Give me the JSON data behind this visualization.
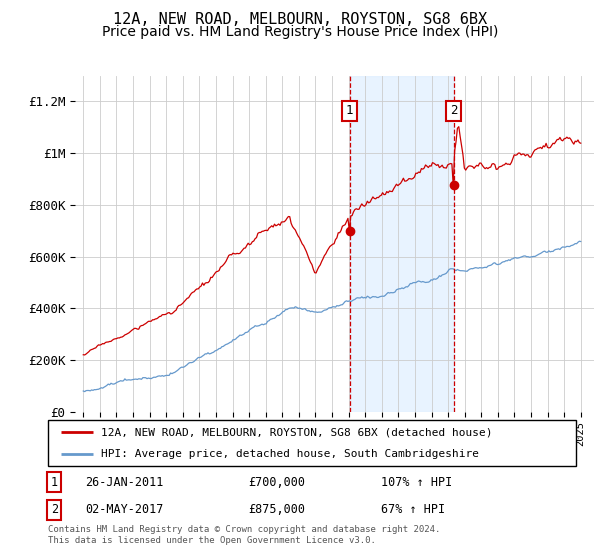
{
  "title": "12A, NEW ROAD, MELBOURN, ROYSTON, SG8 6BX",
  "subtitle": "Price paid vs. HM Land Registry's House Price Index (HPI)",
  "title_fontsize": 11,
  "subtitle_fontsize": 10,
  "ylim": [
    0,
    1300000
  ],
  "yticks": [
    0,
    200000,
    400000,
    600000,
    800000,
    1000000,
    1200000
  ],
  "ytick_labels": [
    "£0",
    "£200K",
    "£400K",
    "£600K",
    "£800K",
    "£1M",
    "£1.2M"
  ],
  "background_color": "#ffffff",
  "plot_bg_color": "#ffffff",
  "grid_color": "#cccccc",
  "sale1": {
    "date_num": 2011.07,
    "price": 700000,
    "label": "1",
    "date_str": "26-JAN-2011",
    "price_str": "£700,000",
    "hpi_str": "107% ↑ HPI"
  },
  "sale2": {
    "date_num": 2017.33,
    "price": 875000,
    "label": "2",
    "date_str": "02-MAY-2017",
    "price_str": "£875,000",
    "hpi_str": "67% ↑ HPI"
  },
  "legend_line1": "12A, NEW ROAD, MELBOURN, ROYSTON, SG8 6BX (detached house)",
  "legend_line2": "HPI: Average price, detached house, South Cambridgeshire",
  "footer": "Contains HM Land Registry data © Crown copyright and database right 2024.\nThis data is licensed under the Open Government Licence v3.0.",
  "red_color": "#cc0000",
  "blue_color": "#6699cc",
  "shade_color": "#ddeeff",
  "box_color": "#cc0000",
  "xlim_left": 1994.5,
  "xlim_right": 2025.8
}
